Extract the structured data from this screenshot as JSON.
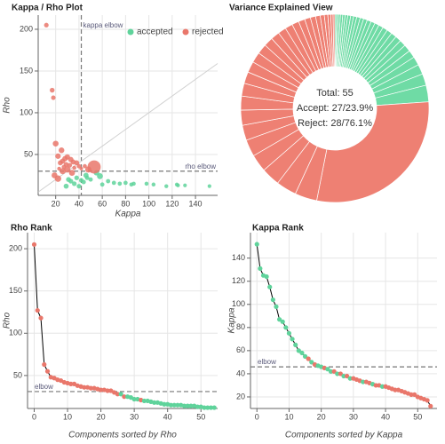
{
  "chart_data": [
    {
      "type": "scatter",
      "title": "Kappa / Rho Plot",
      "x_label": "Kappa",
      "y_label": "Rho",
      "xlim": [
        5,
        159
      ],
      "ylim": [
        1,
        217
      ],
      "xticks": [
        20,
        40,
        60,
        80,
        100,
        120,
        140
      ],
      "yticks": [
        50,
        100,
        150,
        200
      ],
      "grid": true,
      "legend": "top-right",
      "diagonal": true,
      "vline": {
        "value": 42,
        "label": "kappa elbow"
      },
      "hline": {
        "value": 30,
        "label": "rho elbow"
      },
      "series": [
        {
          "name": "accepted",
          "color": "#5fd39b",
          "x": [
            152,
            131,
            125,
            124,
            115,
            104,
            98,
            87,
            85,
            80,
            75,
            70,
            65,
            60,
            58,
            55,
            50,
            47,
            46,
            44,
            42,
            40,
            38,
            36,
            33,
            31,
            29
          ],
          "values": [
            12,
            13,
            13,
            14,
            12,
            14,
            15,
            15,
            14,
            16,
            15,
            16,
            18,
            14,
            24,
            28,
            20,
            22,
            25,
            17,
            19,
            12,
            22,
            15,
            18,
            20,
            12
          ],
          "sizes": [
            0.3,
            0.3,
            0.35,
            0.4,
            0.4,
            0.45,
            0.5,
            0.5,
            0.55,
            0.6,
            0.6,
            0.65,
            0.7,
            0.7,
            2.85,
            2.0,
            0.75,
            0.8,
            1.7,
            0.85,
            0.9,
            0.95,
            1.0,
            1.1,
            1.2,
            1.3,
            1.5
          ]
        },
        {
          "name": "rejected",
          "color": "#e9776b",
          "x": [
            12,
            17,
            18,
            20,
            25,
            22,
            30,
            28,
            33,
            26,
            35,
            24,
            38,
            29,
            32,
            40,
            27,
            45,
            53,
            36,
            23,
            42,
            30,
            48,
            26,
            34,
            19,
            22
          ],
          "values": [
            205,
            127,
            118,
            63,
            55,
            48,
            47,
            45,
            44,
            42,
            41,
            40,
            40,
            38,
            37,
            36,
            35,
            36,
            35,
            34,
            33,
            33,
            32,
            32,
            30,
            28,
            25,
            21
          ],
          "sizes": [
            1.0,
            1.2,
            0.9,
            2.6,
            2.4,
            2.2,
            2.0,
            1.9,
            1.8,
            1.7,
            1.6,
            1.5,
            1.4,
            1.3,
            1.1,
            0.8,
            0.7,
            0.6,
            29.2,
            0.5,
            0.4,
            0.3,
            3.5,
            3.2,
            3.0,
            2.9,
            2.6,
            3.8
          ]
        }
      ]
    },
    {
      "type": "pie",
      "title": "Variance Explained View",
      "center_text": [
        "Total: 55",
        "Accept: 27/23.9%",
        "Reject: 28/76.1%"
      ],
      "slices": [
        {
          "color": "#6fdba5",
          "values": [
            0.3,
            0.3,
            0.35,
            0.4,
            0.4,
            0.45,
            0.5,
            0.5,
            0.55,
            0.6,
            0.6,
            0.65,
            0.7,
            0.7,
            0.75,
            0.8,
            0.85,
            0.9,
            0.95,
            1.0,
            1.1,
            1.2,
            1.3,
            1.5,
            1.7,
            2.0,
            2.85
          ]
        },
        {
          "color": "#ee8073",
          "values": [
            29.2,
            3.8,
            3.5,
            3.2,
            3.0,
            2.9,
            2.6,
            2.6,
            2.4,
            2.2,
            2.0,
            1.9,
            1.8,
            1.7,
            1.6,
            1.5,
            1.4,
            1.3,
            1.2,
            1.1,
            1.0,
            0.9,
            0.8,
            0.7,
            0.6,
            0.5,
            0.4,
            0.3
          ]
        }
      ]
    },
    {
      "type": "line",
      "title": "Rho Rank",
      "x_label": "Components sorted by Rho",
      "y_label": "Rho",
      "xlim": [
        -2,
        55
      ],
      "ylim": [
        11,
        219
      ],
      "xticks": [
        0,
        10,
        20,
        30,
        40,
        50
      ],
      "yticks": [
        50,
        100,
        150,
        200
      ],
      "grid": true,
      "line_color": "#000000",
      "hline": {
        "value": 31,
        "label": "elbow"
      },
      "x": [
        0,
        1,
        2,
        3,
        4,
        5,
        6,
        7,
        8,
        9,
        10,
        11,
        12,
        13,
        14,
        15,
        16,
        17,
        18,
        19,
        20,
        21,
        22,
        23,
        24,
        25,
        26,
        27,
        28,
        29,
        30,
        31,
        32,
        33,
        34,
        35,
        36,
        37,
        38,
        39,
        40,
        41,
        42,
        43,
        44,
        45,
        46,
        47,
        48,
        49,
        50,
        51,
        52,
        53,
        54
      ],
      "values": [
        205,
        127,
        118,
        63,
        55,
        48,
        47,
        45,
        44,
        42,
        41,
        40,
        40,
        38,
        37,
        36,
        36,
        35,
        35,
        34,
        33,
        33,
        32,
        32,
        30,
        28,
        28,
        25,
        25,
        24,
        22,
        22,
        21,
        20,
        20,
        19,
        18,
        18,
        17,
        16,
        16,
        15,
        15,
        15,
        15,
        14,
        14,
        14,
        14,
        13,
        13,
        12,
        12,
        12,
        12
      ],
      "point_colors": [
        "#e9776b",
        "#e9776b",
        "#e9776b",
        "#e9776b",
        "#e9776b",
        "#e9776b",
        "#e9776b",
        "#e9776b",
        "#e9776b",
        "#e9776b",
        "#e9776b",
        "#e9776b",
        "#e9776b",
        "#e9776b",
        "#e9776b",
        "#e9776b",
        "#e9776b",
        "#e9776b",
        "#e9776b",
        "#e9776b",
        "#e9776b",
        "#e9776b",
        "#e9776b",
        "#e9776b",
        "#e9776b",
        "#e9776b",
        "#5fd39b",
        "#e9776b",
        "#5fd39b",
        "#5fd39b",
        "#5fd39b",
        "#5fd39b",
        "#e9776b",
        "#5fd39b",
        "#5fd39b",
        "#5fd39b",
        "#5fd39b",
        "#5fd39b",
        "#5fd39b",
        "#5fd39b",
        "#5fd39b",
        "#5fd39b",
        "#5fd39b",
        "#5fd39b",
        "#5fd39b",
        "#5fd39b",
        "#5fd39b",
        "#5fd39b",
        "#5fd39b",
        "#5fd39b",
        "#5fd39b",
        "#5fd39b",
        "#5fd39b",
        "#5fd39b",
        "#5fd39b"
      ]
    },
    {
      "type": "line",
      "title": "Kappa Rank",
      "x_label": "Components sorted by Kappa",
      "y_label": "Kappa",
      "xlim": [
        -2,
        56
      ],
      "ylim": [
        10,
        162
      ],
      "xticks": [
        0,
        10,
        20,
        30,
        40,
        50
      ],
      "yticks": [
        20,
        40,
        60,
        80,
        100,
        120,
        140
      ],
      "grid": true,
      "line_color": "#000000",
      "hline": {
        "value": 46,
        "label": "elbow"
      },
      "x": [
        0,
        1,
        2,
        3,
        4,
        5,
        6,
        7,
        8,
        9,
        10,
        11,
        12,
        13,
        14,
        15,
        16,
        17,
        18,
        19,
        20,
        21,
        22,
        23,
        24,
        25,
        26,
        27,
        28,
        29,
        30,
        31,
        32,
        33,
        34,
        35,
        36,
        37,
        38,
        39,
        40,
        41,
        42,
        43,
        44,
        45,
        46,
        47,
        48,
        49,
        50,
        51,
        52,
        53,
        54
      ],
      "values": [
        152,
        131,
        125,
        124,
        115,
        104,
        98,
        87,
        85,
        80,
        75,
        70,
        65,
        60,
        58,
        55,
        53,
        50,
        48,
        47,
        46,
        45,
        44,
        42,
        42,
        40,
        40,
        38,
        38,
        36,
        36,
        35,
        34,
        33,
        33,
        32,
        31,
        30,
        30,
        29,
        29,
        28,
        27,
        26,
        26,
        25,
        24,
        23,
        22,
        22,
        20,
        19,
        18,
        17,
        12
      ],
      "point_colors": [
        "#5fd39b",
        "#5fd39b",
        "#5fd39b",
        "#5fd39b",
        "#5fd39b",
        "#5fd39b",
        "#5fd39b",
        "#5fd39b",
        "#5fd39b",
        "#5fd39b",
        "#5fd39b",
        "#5fd39b",
        "#5fd39b",
        "#5fd39b",
        "#5fd39b",
        "#5fd39b",
        "#e9776b",
        "#5fd39b",
        "#e9776b",
        "#5fd39b",
        "#5fd39b",
        "#e9776b",
        "#5fd39b",
        "#5fd39b",
        "#e9776b",
        "#5fd39b",
        "#e9776b",
        "#5fd39b",
        "#e9776b",
        "#5fd39b",
        "#e9776b",
        "#e9776b",
        "#e9776b",
        "#5fd39b",
        "#e9776b",
        "#e9776b",
        "#5fd39b",
        "#e9776b",
        "#e9776b",
        "#5fd39b",
        "#e9776b",
        "#e9776b",
        "#e9776b",
        "#e9776b",
        "#e9776b",
        "#e9776b",
        "#e9776b",
        "#e9776b",
        "#e9776b",
        "#e9776b",
        "#e9776b",
        "#e9776b",
        "#e9776b",
        "#e9776b",
        "#e9776b"
      ]
    }
  ]
}
